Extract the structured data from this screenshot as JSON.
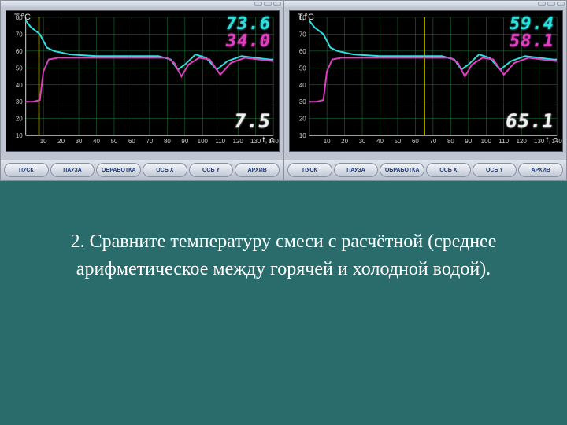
{
  "bg_color": "#2a6b6b",
  "caption": "2. Сравните температуру смеси с расчётной (среднее арифметическое между горячей и холодной водой).",
  "caption_color": "#ffffff",
  "caption_fontsize": 24,
  "panels": [
    {
      "chart": {
        "type": "line",
        "background_color": "#000000",
        "grid_color": "#208040",
        "axis_color": "#d0d0d0",
        "xlabel": "t, с",
        "ylabel": "T,°C",
        "xlim": [
          0,
          140
        ],
        "ylim": [
          10,
          80
        ],
        "xtick_step": 10,
        "ytick_step": 10,
        "xticks": [
          10,
          20,
          30,
          40,
          50,
          60,
          70,
          80,
          90,
          100,
          110,
          120,
          130,
          140
        ],
        "yticks": [
          10,
          20,
          30,
          40,
          50,
          60,
          70,
          80
        ],
        "cursor_x": 7.5,
        "cursor_color": "#f5f000",
        "series": [
          {
            "name": "hot",
            "color": "#2de0e0",
            "width": 2,
            "points": [
              [
                0,
                78
              ],
              [
                3,
                74
              ],
              [
                8,
                70
              ],
              [
                12,
                62
              ],
              [
                16,
                60
              ],
              [
                25,
                58
              ],
              [
                40,
                57
              ],
              [
                60,
                57
              ],
              [
                75,
                57
              ],
              [
                82,
                55
              ],
              [
                86,
                49
              ],
              [
                90,
                52
              ],
              [
                96,
                58
              ],
              [
                102,
                56
              ],
              [
                108,
                49
              ],
              [
                114,
                54
              ],
              [
                122,
                57
              ],
              [
                130,
                56
              ],
              [
                138,
                55
              ],
              [
                140,
                55
              ]
            ]
          },
          {
            "name": "cold",
            "color": "#e040c0",
            "width": 2,
            "points": [
              [
                0,
                30
              ],
              [
                4,
                30
              ],
              [
                8,
                31
              ],
              [
                10,
                48
              ],
              [
                13,
                55
              ],
              [
                18,
                56
              ],
              [
                30,
                56
              ],
              [
                50,
                56
              ],
              [
                70,
                56
              ],
              [
                80,
                56
              ],
              [
                84,
                53
              ],
              [
                88,
                45
              ],
              [
                92,
                52
              ],
              [
                98,
                56
              ],
              [
                104,
                55
              ],
              [
                110,
                46
              ],
              [
                116,
                53
              ],
              [
                124,
                56
              ],
              [
                132,
                55
              ],
              [
                140,
                54
              ]
            ]
          }
        ],
        "readout_hot": "73.6",
        "readout_cold": "34.0",
        "readout_time": "7.5",
        "readout_hot_color": "#2de0e0",
        "readout_cold_color": "#e040c0",
        "readout_time_color": "#f0f0f0",
        "readout_fontsize": 22
      },
      "toolbar_buttons": [
        "ПУСК",
        "ПАУЗА",
        "ОБРАБОТКА",
        "ОСЬ X",
        "ОСЬ Y",
        "АРХИВ"
      ]
    },
    {
      "chart": {
        "type": "line",
        "background_color": "#000000",
        "grid_color": "#208040",
        "axis_color": "#d0d0d0",
        "xlabel": "t, с",
        "ylabel": "T,°C",
        "xlim": [
          0,
          140
        ],
        "ylim": [
          10,
          80
        ],
        "xtick_step": 10,
        "ytick_step": 10,
        "xticks": [
          10,
          20,
          30,
          40,
          50,
          60,
          70,
          80,
          90,
          100,
          110,
          120,
          130,
          140
        ],
        "yticks": [
          10,
          20,
          30,
          40,
          50,
          60,
          70,
          80
        ],
        "cursor_x": 65.1,
        "cursor_color": "#f5f000",
        "series": [
          {
            "name": "hot",
            "color": "#2de0e0",
            "width": 2,
            "points": [
              [
                0,
                78
              ],
              [
                3,
                74
              ],
              [
                8,
                70
              ],
              [
                12,
                62
              ],
              [
                16,
                60
              ],
              [
                25,
                58
              ],
              [
                40,
                57
              ],
              [
                60,
                57
              ],
              [
                75,
                57
              ],
              [
                82,
                55
              ],
              [
                86,
                49
              ],
              [
                90,
                52
              ],
              [
                96,
                58
              ],
              [
                102,
                56
              ],
              [
                108,
                49
              ],
              [
                114,
                54
              ],
              [
                122,
                57
              ],
              [
                130,
                56
              ],
              [
                138,
                55
              ],
              [
                140,
                55
              ]
            ]
          },
          {
            "name": "cold",
            "color": "#e040c0",
            "width": 2,
            "points": [
              [
                0,
                30
              ],
              [
                4,
                30
              ],
              [
                8,
                31
              ],
              [
                10,
                48
              ],
              [
                13,
                55
              ],
              [
                18,
                56
              ],
              [
                30,
                56
              ],
              [
                50,
                56
              ],
              [
                70,
                56
              ],
              [
                80,
                56
              ],
              [
                84,
                53
              ],
              [
                88,
                45
              ],
              [
                92,
                52
              ],
              [
                98,
                56
              ],
              [
                104,
                55
              ],
              [
                110,
                46
              ],
              [
                116,
                53
              ],
              [
                124,
                56
              ],
              [
                132,
                55
              ],
              [
                140,
                54
              ]
            ]
          }
        ],
        "readout_hot": "59.4",
        "readout_cold": "58.1",
        "readout_time": "65.1",
        "readout_hot_color": "#2de0e0",
        "readout_cold_color": "#e040c0",
        "readout_time_color": "#f0f0f0",
        "readout_fontsize": 22
      },
      "toolbar_buttons": [
        "ПУСК",
        "ПАУЗА",
        "ОБРАБОТКА",
        "ОСЬ X",
        "ОСЬ Y",
        "АРХИВ"
      ]
    }
  ]
}
